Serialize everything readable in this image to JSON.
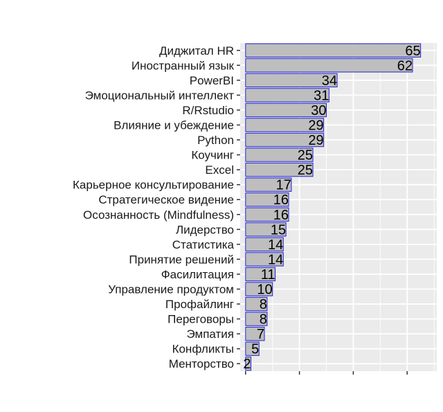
{
  "chart_data": {
    "type": "bar",
    "orientation": "horizontal",
    "title": "",
    "xlabel": "",
    "ylabel": "",
    "categories": [
      "Диджитал HR",
      "Иностранный язык",
      "PowerBI",
      "Эмоциональный интеллект",
      "R/Rstudio",
      "Влияние и убеждение",
      "Python",
      "Коучинг",
      "Excel",
      "Карьерное консультирование",
      "Стратегическое видение",
      "Осознанность (Mindfulness)",
      "Лидерство",
      "Статистика",
      "Принятие решений",
      "Фасилитация",
      "Управление продуктом",
      "Профайлинг",
      "Переговоры",
      "Эмпатия",
      "Конфликты",
      "Менторство"
    ],
    "values": [
      65,
      62,
      34,
      31,
      30,
      29,
      29,
      25,
      25,
      17,
      16,
      16,
      15,
      14,
      14,
      11,
      10,
      8,
      8,
      7,
      5,
      2
    ],
    "xlim": [
      -2,
      71
    ],
    "x_ticks": [
      0,
      20,
      40,
      60
    ],
    "show_x_tick_labels": false,
    "grid": true,
    "legend": "none",
    "colors": {
      "bar_fill": "#bebebe",
      "bar_stroke": "#1f1fd6",
      "panel_bg": "#ebebeb",
      "grid": "#ffffff",
      "tick": "#333333"
    }
  }
}
